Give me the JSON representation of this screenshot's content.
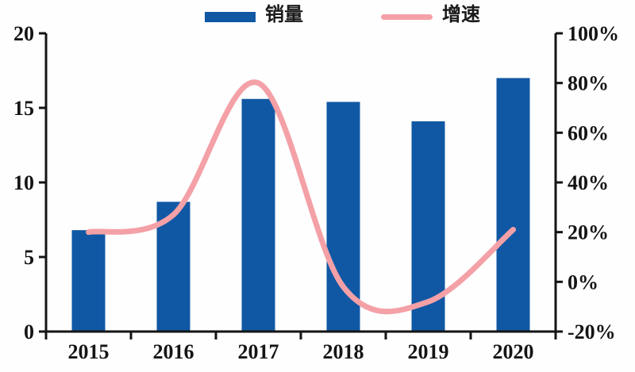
{
  "page": {
    "background": "#fefefe"
  },
  "legend": {
    "position": "top",
    "items": [
      {
        "label": "销量",
        "type": "bar",
        "color": "#1058A4",
        "swatch": "blue-rect"
      },
      {
        "label": "增速",
        "type": "line",
        "color": "#F4A0A7",
        "swatch": "pink-line"
      }
    ]
  },
  "chart_data": {
    "type": "combo",
    "categories": [
      "2015",
      "2016",
      "2017",
      "2018",
      "2019",
      "2020"
    ],
    "series": [
      {
        "name": "销量",
        "type": "bar",
        "axis": "left",
        "color": "#1058A4",
        "values": [
          6.8,
          8.7,
          15.6,
          15.4,
          14.1,
          17.0
        ]
      },
      {
        "name": "增速",
        "type": "line",
        "axis": "right",
        "color": "#F4A0A7",
        "unit": "%",
        "smooth": true,
        "values": [
          20,
          27,
          80,
          -2,
          -8,
          21
        ]
      }
    ],
    "left_axis": {
      "min": 0,
      "max": 20,
      "tick_labels": [
        "0",
        "5",
        "10",
        "15",
        "20"
      ]
    },
    "right_axis": {
      "min": -20,
      "max": 100,
      "tick_labels": [
        "-20%",
        "0%",
        "20%",
        "40%",
        "60%",
        "80%",
        "100%"
      ]
    },
    "axis_color": "#141414",
    "grid": false,
    "legend_position": "top",
    "title": "",
    "xlabel": "",
    "ylabel": ""
  }
}
